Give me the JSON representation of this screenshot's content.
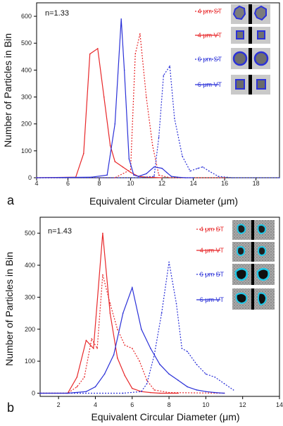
{
  "colors": {
    "red": "#e8282a",
    "blue": "#2b31d8",
    "axis": "#000000"
  },
  "chart_data": [
    {
      "type": "line",
      "panel_letter": "a",
      "annotation": "n=1.33",
      "xlabel": "Equivalent Circular Diameter (μm)",
      "ylabel": "Number of Particles in Bin",
      "xlim": [
        4,
        19.5
      ],
      "ylim": [
        0,
        650
      ],
      "xticks": [
        4,
        6,
        8,
        10,
        12,
        14,
        16,
        18
      ],
      "yticks": [
        0,
        100,
        200,
        300,
        400,
        500,
        600
      ],
      "series": [
        {
          "name": "4 μm ST",
          "color": "red",
          "dash": true,
          "x": [
            4,
            9,
            10,
            10.3,
            10.6,
            11,
            11.4,
            11.8,
            12.5,
            16
          ],
          "y": [
            0,
            0,
            30,
            460,
            535,
            300,
            120,
            10,
            0,
            0
          ]
        },
        {
          "name": "4 μm VT",
          "color": "red",
          "dash": false,
          "x": [
            4,
            6.5,
            7,
            7.4,
            7.9,
            8.3,
            8.7,
            9,
            9.5,
            10,
            10.5,
            11,
            12
          ],
          "y": [
            0,
            2,
            90,
            460,
            480,
            300,
            120,
            60,
            40,
            20,
            5,
            2,
            0
          ]
        },
        {
          "name": "6 μm ST",
          "color": "blue",
          "dash": true,
          "x": [
            4,
            10.5,
            11.5,
            11.8,
            12.1,
            12.5,
            12.8,
            13.3,
            13.8,
            14.3,
            14.6,
            15,
            15.6,
            16.5,
            19.5
          ],
          "y": [
            0,
            0,
            5,
            150,
            380,
            415,
            220,
            80,
            25,
            35,
            40,
            25,
            5,
            0,
            0
          ]
        },
        {
          "name": "6 μm VT",
          "color": "blue",
          "dash": false,
          "x": [
            4,
            7.5,
            8.5,
            9,
            9.4,
            9.6,
            9.9,
            10.2,
            10.5,
            11,
            11.5,
            12,
            12.3,
            12.6,
            13,
            13.5,
            14
          ],
          "y": [
            0,
            2,
            10,
            200,
            590,
            400,
            70,
            10,
            5,
            15,
            40,
            35,
            20,
            5,
            2,
            0,
            0
          ]
        }
      ]
    },
    {
      "type": "line",
      "panel_letter": "b",
      "annotation": "n=1.43",
      "xlabel": "Equivalent Circular Diameter (μm)",
      "ylabel": "Number of Particles in Bin",
      "xlim": [
        1,
        14
      ],
      "ylim": [
        -10,
        550
      ],
      "xticks": [
        2,
        4,
        6,
        8,
        10,
        12,
        14
      ],
      "yticks": [
        0,
        100,
        200,
        300,
        400,
        500
      ],
      "series": [
        {
          "name": "4 μm ST",
          "color": "red",
          "dash": true,
          "x": [
            1,
            2.5,
            3,
            3.4,
            3.8,
            4.1,
            4.4,
            4.8,
            5.2,
            5.6,
            6.0,
            6.4,
            6.8,
            7.2,
            8,
            11
          ],
          "y": [
            0,
            0,
            20,
            50,
            170,
            140,
            370,
            280,
            200,
            150,
            140,
            100,
            40,
            10,
            2,
            0
          ]
        },
        {
          "name": "4 μm VT",
          "color": "red",
          "dash": false,
          "x": [
            1,
            2.5,
            3,
            3.5,
            3.9,
            4.4,
            4.8,
            5.2,
            5.6,
            6,
            6.5,
            7,
            7.5,
            8.5
          ],
          "y": [
            0,
            0,
            50,
            165,
            140,
            500,
            250,
            110,
            55,
            15,
            5,
            2,
            0,
            0
          ]
        },
        {
          "name": "6 μm ST",
          "color": "blue",
          "dash": true,
          "x": [
            1,
            5.5,
            6.5,
            6.8,
            7.2,
            7.6,
            8.0,
            8.4,
            8.7,
            9,
            9.5,
            10,
            10.5,
            11,
            11.5
          ],
          "y": [
            0,
            0,
            5,
            30,
            120,
            250,
            410,
            280,
            140,
            130,
            90,
            60,
            50,
            30,
            10
          ]
        },
        {
          "name": "6 μm VT",
          "color": "blue",
          "dash": false,
          "x": [
            1,
            2.5,
            3.5,
            4,
            4.5,
            5,
            5.5,
            6,
            6.5,
            7,
            7.5,
            8,
            8.5,
            9,
            9.5,
            10,
            10.5,
            11
          ],
          "y": [
            0,
            0,
            5,
            20,
            60,
            120,
            250,
            330,
            200,
            140,
            90,
            60,
            40,
            20,
            10,
            5,
            2,
            0
          ]
        }
      ]
    }
  ]
}
